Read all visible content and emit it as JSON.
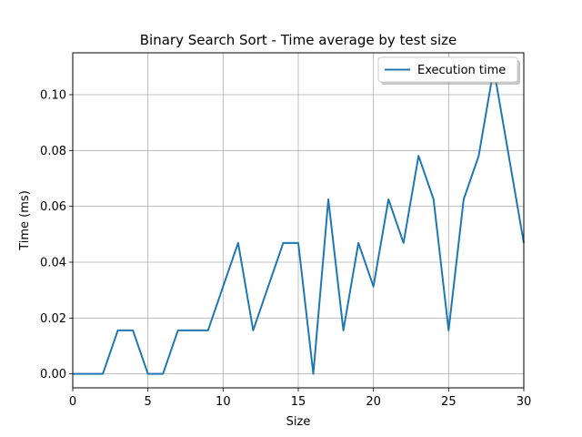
{
  "chart_data": {
    "type": "line",
    "title": "Binary Search Sort - Time average by test size",
    "xlabel": "Size",
    "ylabel": "Time (ms)",
    "xlim": [
      0,
      30
    ],
    "ylim": [
      -0.005,
      0.115
    ],
    "x_ticks": [
      0,
      5,
      10,
      15,
      20,
      25,
      30
    ],
    "y_ticks": [
      0.0,
      0.02,
      0.04,
      0.06,
      0.08,
      0.1
    ],
    "x_tick_labels": [
      "0",
      "5",
      "10",
      "15",
      "20",
      "25",
      "30"
    ],
    "y_tick_labels": [
      "0.00",
      "0.02",
      "0.04",
      "0.06",
      "0.08",
      "0.10"
    ],
    "grid": true,
    "legend_position": "top-right",
    "series": [
      {
        "name": "Execution time",
        "color": "#1f77b4",
        "x": [
          0,
          1,
          2,
          3,
          4,
          5,
          6,
          7,
          8,
          9,
          10,
          11,
          12,
          13,
          14,
          15,
          16,
          17,
          18,
          19,
          20,
          21,
          22,
          23,
          24,
          25,
          26,
          27,
          28,
          29,
          30
        ],
        "values": [
          0.0,
          0.0,
          0.0,
          0.0156,
          0.0156,
          0.0,
          0.0,
          0.0156,
          0.0156,
          0.0156,
          0.0313,
          0.0469,
          0.0156,
          0.0313,
          0.0469,
          0.0469,
          0.0,
          0.0625,
          0.0156,
          0.0469,
          0.0313,
          0.0625,
          0.0469,
          0.0781,
          0.0625,
          0.0156,
          0.0625,
          0.0781,
          0.1094,
          0.0781,
          0.0469
        ]
      }
    ]
  }
}
